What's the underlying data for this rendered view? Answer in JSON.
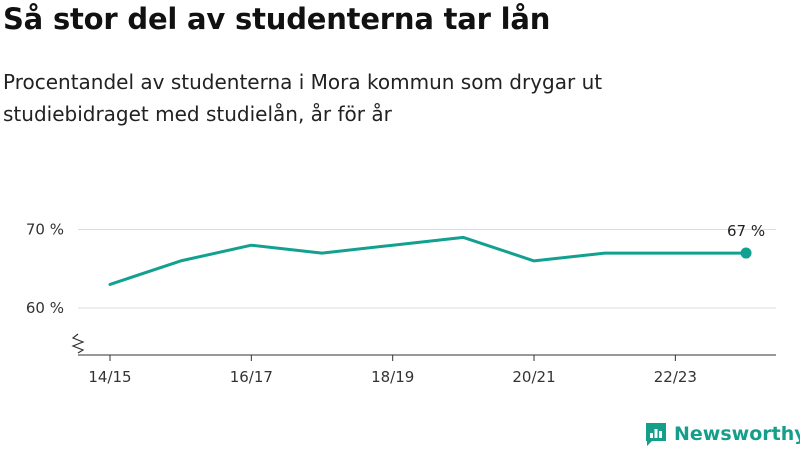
{
  "title": "Så stor del av studenterna tar lån",
  "subtitle": "Procentandel av studenterna i Mora kommun som drygar ut studiebidraget med studielån, år för år",
  "brand": {
    "name": "Newsworthy",
    "icon": "newsworthy-logo-icon",
    "color": "#159e8a"
  },
  "chart_data": {
    "type": "line",
    "title": "Så stor del av studenterna tar lån",
    "subtitle": "Procentandel av studenterna i Mora kommun som drygar ut studiebidraget med studielån, år för år",
    "x": [
      "14/15",
      "15/16",
      "16/17",
      "17/18",
      "18/19",
      "19/20",
      "20/21",
      "21/22",
      "22/23",
      "23/24"
    ],
    "series": [
      {
        "values": [
          63,
          66,
          68,
          67,
          68,
          69,
          66,
          67,
          67,
          67
        ],
        "color": "#12a191"
      }
    ],
    "x_tick_labels": [
      "14/15",
      "16/17",
      "18/19",
      "20/21",
      "22/23"
    ],
    "y_ticks": [
      60,
      70
    ],
    "y_tick_labels": [
      "60 %",
      "70 %"
    ],
    "ylim": [
      54,
      71
    ],
    "y_axis_broken": true,
    "end_label": "67 %",
    "grid": true,
    "gridline_color": "#dddddd",
    "xlabel": "",
    "ylabel": ""
  }
}
